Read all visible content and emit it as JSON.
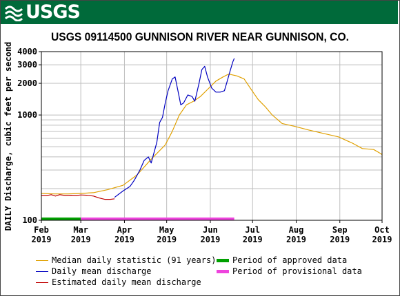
{
  "banner": {
    "logo_text": "USGS"
  },
  "chart_data": {
    "type": "line",
    "title": "USGS 09114500 GUNNISON RIVER NEAR GUNNISON, CO.",
    "ylabel": "DAILY Discharge, cubic feet per second",
    "xlabel": "",
    "y_scale": "log",
    "ylim": [
      100,
      4000
    ],
    "xlim": [
      "2019-02-01",
      "2019-10-01"
    ],
    "y_ticks": [
      100,
      1000,
      2000,
      3000,
      4000
    ],
    "y_tick_labels": [
      "100",
      "1000",
      "2000",
      "3000",
      "4000"
    ],
    "x_ticks": [
      "2019-02-01",
      "2019-03-01",
      "2019-04-01",
      "2019-05-01",
      "2019-06-01",
      "2019-07-01",
      "2019-08-01",
      "2019-09-01",
      "2019-10-01"
    ],
    "x_tick_labels": [
      [
        "Feb",
        "2019"
      ],
      [
        "Mar",
        "2019"
      ],
      [
        "Apr",
        "2019"
      ],
      [
        "May",
        "2019"
      ],
      [
        "Jun",
        "2019"
      ],
      [
        "Jul",
        "2019"
      ],
      [
        "Aug",
        "2019"
      ],
      [
        "Sep",
        "2019"
      ],
      [
        "Oct",
        "2019"
      ]
    ],
    "grid": true,
    "series": [
      {
        "name": "Median daily statistic (91 years)",
        "color": "#e0a000",
        "points": [
          [
            "2019-02-01",
            180
          ],
          [
            "2019-02-10",
            178
          ],
          [
            "2019-02-20",
            178
          ],
          [
            "2019-03-01",
            180
          ],
          [
            "2019-03-10",
            183
          ],
          [
            "2019-03-20",
            195
          ],
          [
            "2019-03-31",
            215
          ],
          [
            "2019-04-10",
            270
          ],
          [
            "2019-04-20",
            380
          ],
          [
            "2019-04-30",
            520
          ],
          [
            "2019-05-05",
            700
          ],
          [
            "2019-05-10",
            1000
          ],
          [
            "2019-05-15",
            1250
          ],
          [
            "2019-05-20",
            1350
          ],
          [
            "2019-05-25",
            1500
          ],
          [
            "2019-05-31",
            1800
          ],
          [
            "2019-06-05",
            2100
          ],
          [
            "2019-06-10",
            2300
          ],
          [
            "2019-06-14",
            2450
          ],
          [
            "2019-06-20",
            2350
          ],
          [
            "2019-06-25",
            2200
          ],
          [
            "2019-06-30",
            1750
          ],
          [
            "2019-07-05",
            1400
          ],
          [
            "2019-07-10",
            1200
          ],
          [
            "2019-07-15",
            1000
          ],
          [
            "2019-07-22",
            830
          ],
          [
            "2019-07-31",
            780
          ],
          [
            "2019-08-10",
            720
          ],
          [
            "2019-08-20",
            670
          ],
          [
            "2019-08-31",
            620
          ],
          [
            "2019-09-10",
            540
          ],
          [
            "2019-09-17",
            480
          ],
          [
            "2019-09-25",
            470
          ],
          [
            "2019-09-30",
            430
          ],
          [
            "2019-10-01",
            420
          ]
        ]
      },
      {
        "name": "Daily mean discharge",
        "color": "#0000c0",
        "points": [
          [
            "2019-03-25",
            165
          ],
          [
            "2019-03-31",
            190
          ],
          [
            "2019-04-05",
            210
          ],
          [
            "2019-04-08",
            240
          ],
          [
            "2019-04-12",
            300
          ],
          [
            "2019-04-15",
            370
          ],
          [
            "2019-04-18",
            400
          ],
          [
            "2019-04-20",
            350
          ],
          [
            "2019-04-24",
            550
          ],
          [
            "2019-04-26",
            850
          ],
          [
            "2019-04-28",
            950
          ],
          [
            "2019-04-30",
            1300
          ],
          [
            "2019-05-02",
            1700
          ],
          [
            "2019-05-05",
            2200
          ],
          [
            "2019-05-07",
            2300
          ],
          [
            "2019-05-09",
            1700
          ],
          [
            "2019-05-11",
            1250
          ],
          [
            "2019-05-13",
            1300
          ],
          [
            "2019-05-16",
            1550
          ],
          [
            "2019-05-19",
            1500
          ],
          [
            "2019-05-21",
            1350
          ],
          [
            "2019-05-24",
            2000
          ],
          [
            "2019-05-26",
            2700
          ],
          [
            "2019-05-28",
            2900
          ],
          [
            "2019-05-30",
            2300
          ],
          [
            "2019-06-02",
            1800
          ],
          [
            "2019-06-05",
            1650
          ],
          [
            "2019-06-08",
            1650
          ],
          [
            "2019-06-11",
            1700
          ],
          [
            "2019-06-13",
            2100
          ],
          [
            "2019-06-15",
            2600
          ],
          [
            "2019-06-17",
            3200
          ],
          [
            "2019-06-18",
            3450
          ]
        ]
      },
      {
        "name": "Estimated daily mean discharge",
        "color": "#c00000",
        "points": [
          [
            "2019-02-01",
            172
          ],
          [
            "2019-02-05",
            172
          ],
          [
            "2019-02-08",
            175
          ],
          [
            "2019-02-11",
            170
          ],
          [
            "2019-02-14",
            175
          ],
          [
            "2019-02-18",
            172
          ],
          [
            "2019-02-22",
            173
          ],
          [
            "2019-02-26",
            172
          ],
          [
            "2019-03-01",
            174
          ],
          [
            "2019-03-05",
            173
          ],
          [
            "2019-03-10",
            170
          ],
          [
            "2019-03-14",
            163
          ],
          [
            "2019-03-18",
            158
          ],
          [
            "2019-03-22",
            158
          ],
          [
            "2019-03-25",
            160
          ]
        ]
      }
    ],
    "periods": [
      {
        "name": "Period of approved data",
        "color": "#00a000",
        "start": "2019-02-01",
        "end": "2019-03-01"
      },
      {
        "name": "Period of provisional data",
        "color": "#ee44dd",
        "start": "2019-03-01",
        "end": "2019-06-18"
      }
    ]
  },
  "legend": {
    "median": "Median daily statistic (91 years)",
    "daily": "Daily mean discharge",
    "estimated": "Estimated daily mean discharge",
    "approved": "Period of approved data",
    "provisional": "Period of provisional data"
  }
}
